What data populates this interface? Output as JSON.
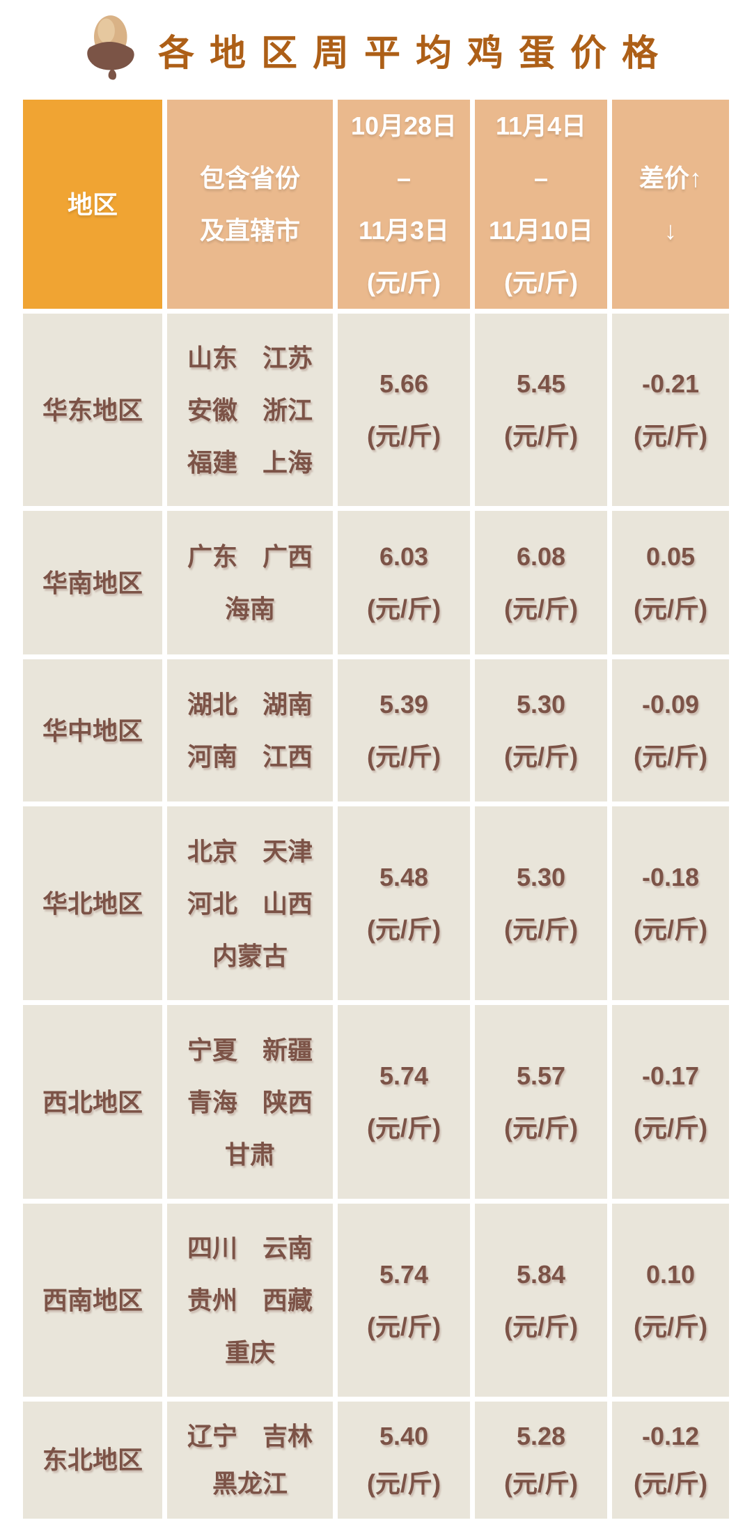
{
  "title": {
    "text": "各地区周平均鸡蛋价格",
    "icon": "acorn-icon"
  },
  "table": {
    "unit": "(元/斤)",
    "headers": {
      "region": "地区",
      "provinces": [
        "包含省份",
        "及直辖市"
      ],
      "week1": [
        "10月28日",
        "–",
        "11月3日",
        "(元/斤)"
      ],
      "week2": [
        "11月4日",
        "–",
        "11月10日",
        "(元/斤)"
      ],
      "diff": [
        "差价↑",
        "↓"
      ]
    },
    "rows": [
      {
        "region": "华东地区",
        "provinces": [
          "山东　江苏",
          "安徽　浙江",
          "福建　上海"
        ],
        "week1": "5.66",
        "week2": "5.45",
        "diff": "-0.21"
      },
      {
        "region": "华南地区",
        "provinces": [
          "广东　广西",
          "海南"
        ],
        "week1": "6.03",
        "week2": "6.08",
        "diff": "0.05"
      },
      {
        "region": "华中地区",
        "provinces": [
          "湖北　湖南",
          "河南　江西"
        ],
        "week1": "5.39",
        "week2": "5.30",
        "diff": "-0.09"
      },
      {
        "region": "华北地区",
        "provinces": [
          "北京　天津",
          "河北　山西",
          "内蒙古"
        ],
        "week1": "5.48",
        "week2": "5.30",
        "diff": "-0.18"
      },
      {
        "region": "西北地区",
        "provinces": [
          "宁夏　新疆",
          "青海　陕西",
          "甘肃"
        ],
        "week1": "5.74",
        "week2": "5.57",
        "diff": "-0.17"
      },
      {
        "region": "西南地区",
        "provinces": [
          "四川　云南",
          "贵州　西藏",
          "重庆"
        ],
        "week1": "5.74",
        "week2": "5.84",
        "diff": "0.10"
      },
      {
        "region": "东北地区",
        "provinces": [
          "辽宁　吉林",
          "黑龙江"
        ],
        "week1": "5.40",
        "week2": "5.28",
        "diff": "-0.12"
      }
    ]
  },
  "colors": {
    "header_orange": "#f0a433",
    "header_tan": "#eab98d",
    "cell_bg": "#e9e5da",
    "text_brown": "#7c5347",
    "title_color": "#ad5f17"
  },
  "chart_data": {
    "type": "table",
    "title": "各地区周平均鸡蛋价格",
    "columns": [
      "地区",
      "包含省份及直辖市",
      "10月28日–11月3日(元/斤)",
      "11月4日–11月10日(元/斤)",
      "差价↑↓(元/斤)"
    ],
    "rows": [
      [
        "华东地区",
        "山东 江苏 安徽 浙江 福建 上海",
        5.66,
        5.45,
        -0.21
      ],
      [
        "华南地区",
        "广东 广西 海南",
        6.03,
        6.08,
        0.05
      ],
      [
        "华中地区",
        "湖北 湖南 河南 江西",
        5.39,
        5.3,
        -0.09
      ],
      [
        "华北地区",
        "北京 天津 河北 山西 内蒙古",
        5.48,
        5.3,
        -0.18
      ],
      [
        "西北地区",
        "宁夏 新疆 青海 陕西 甘肃",
        5.74,
        5.57,
        -0.17
      ],
      [
        "西南地区",
        "四川 云南 贵州 西藏 重庆",
        5.74,
        5.84,
        0.1
      ],
      [
        "东北地区",
        "辽宁 吉林 黑龙江",
        5.4,
        5.28,
        -0.12
      ]
    ]
  }
}
